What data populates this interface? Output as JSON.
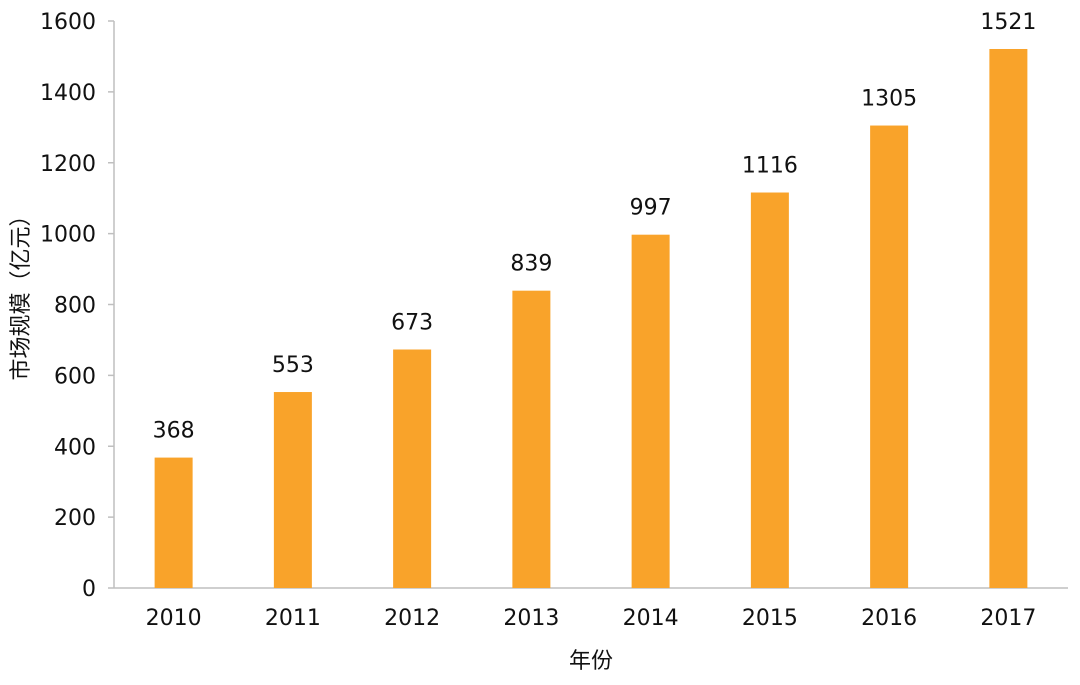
{
  "chart_data": {
    "type": "bar",
    "title": "",
    "xlabel": "年份",
    "ylabel": "市场规模（亿元）",
    "categories": [
      "2010",
      "2011",
      "2012",
      "2013",
      "2014",
      "2015",
      "2016",
      "2017"
    ],
    "values": [
      368,
      553,
      673,
      839,
      997,
      1116,
      1305,
      1521
    ],
    "ylim": [
      0,
      1600
    ],
    "yticks": [
      0,
      200,
      400,
      600,
      800,
      1000,
      1200,
      1400,
      1600
    ],
    "bar_color": "#F9A32A",
    "axis_color": "#BFBFBF",
    "grid": false,
    "legend": "none"
  }
}
